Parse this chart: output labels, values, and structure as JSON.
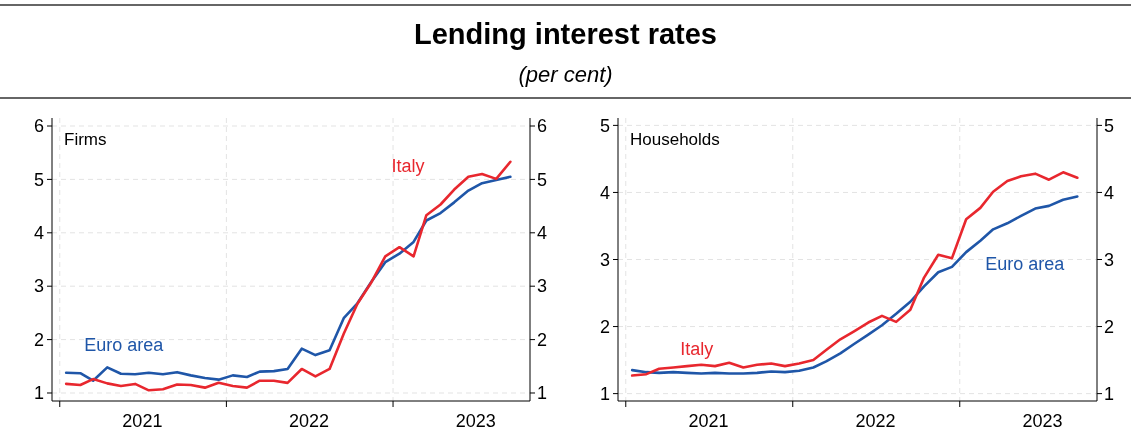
{
  "chart_data": [
    {
      "type": "line",
      "title": "Firms",
      "annotations": [
        "Lending interest rates",
        "(per cent)"
      ],
      "x": [
        "2021-01-15",
        "2021-02-15",
        "2021-03-15",
        "2021-04-15",
        "2021-05-15",
        "2021-06-15",
        "2021-07-15",
        "2021-08-15",
        "2021-09-15",
        "2021-10-15",
        "2021-11-15",
        "2021-12-15",
        "2022-01-15",
        "2022-02-15",
        "2022-03-15",
        "2022-04-15",
        "2022-05-15",
        "2022-06-15",
        "2022-07-15",
        "2022-08-15",
        "2022-09-15",
        "2022-10-15",
        "2022-11-15",
        "2022-12-15",
        "2023-01-15",
        "2023-02-15",
        "2023-03-15",
        "2023-04-15",
        "2023-05-15",
        "2023-06-15",
        "2023-07-15",
        "2023-08-15",
        "2023-09-15"
      ],
      "series": [
        {
          "name": "Euro area",
          "color": "#1f56a8",
          "values": [
            1.38,
            1.37,
            1.23,
            1.48,
            1.36,
            1.35,
            1.38,
            1.35,
            1.39,
            1.33,
            1.28,
            1.25,
            1.33,
            1.3,
            1.4,
            1.41,
            1.45,
            1.83,
            1.71,
            1.8,
            2.4,
            2.68,
            3.09,
            3.45,
            3.61,
            3.83,
            4.23,
            4.37,
            4.57,
            4.79,
            4.93,
            4.99,
            5.05
          ]
        },
        {
          "name": "Italy",
          "color": "#e8272e",
          "values": [
            1.17,
            1.15,
            1.26,
            1.18,
            1.13,
            1.17,
            1.05,
            1.07,
            1.16,
            1.15,
            1.1,
            1.19,
            1.13,
            1.1,
            1.23,
            1.23,
            1.19,
            1.45,
            1.31,
            1.45,
            2.11,
            2.67,
            3.08,
            3.56,
            3.73,
            3.56,
            4.33,
            4.53,
            4.81,
            5.05,
            5.1,
            5.01,
            5.33
          ]
        }
      ],
      "xlim": [
        "2020-12-15",
        "2023-10-28"
      ],
      "xticks": [
        {
          "value": "2021-01-01",
          "label": null
        },
        {
          "value": "2021-07-01",
          "label": "2021"
        },
        {
          "value": "2022-01-01",
          "label": null
        },
        {
          "value": "2022-07-01",
          "label": "2022"
        },
        {
          "value": "2023-01-01",
          "label": null
        },
        {
          "value": "2023-07-01",
          "label": "2023"
        }
      ],
      "ylim": [
        0.85,
        6.15
      ],
      "yticks": [
        1,
        2,
        3,
        4,
        5,
        6
      ],
      "y2lim": [
        0.85,
        6.15
      ],
      "y2ticks": [
        1,
        2,
        3,
        4,
        5,
        6
      ],
      "grid": true,
      "line_style": "solid",
      "marker": "none"
    },
    {
      "type": "line",
      "title": "Households",
      "x": [
        "2021-01-15",
        "2021-02-15",
        "2021-03-15",
        "2021-04-15",
        "2021-05-15",
        "2021-06-15",
        "2021-07-15",
        "2021-08-15",
        "2021-09-15",
        "2021-10-15",
        "2021-11-15",
        "2021-12-15",
        "2022-01-15",
        "2022-02-15",
        "2022-03-15",
        "2022-04-15",
        "2022-05-15",
        "2022-06-15",
        "2022-07-15",
        "2022-08-15",
        "2022-09-15",
        "2022-10-15",
        "2022-11-15",
        "2022-12-15",
        "2023-01-15",
        "2023-02-15",
        "2023-03-15",
        "2023-04-15",
        "2023-05-15",
        "2023-06-15",
        "2023-07-15",
        "2023-08-15",
        "2023-09-15"
      ],
      "series": [
        {
          "name": "Euro area",
          "color": "#1f56a8",
          "values": [
            1.35,
            1.32,
            1.31,
            1.32,
            1.31,
            1.3,
            1.31,
            1.3,
            1.3,
            1.31,
            1.33,
            1.32,
            1.34,
            1.39,
            1.48,
            1.6,
            1.74,
            1.88,
            2.02,
            2.19,
            2.37,
            2.6,
            2.81,
            2.89,
            3.11,
            3.28,
            3.45,
            3.54,
            3.65,
            3.76,
            3.8,
            3.89,
            3.94
          ]
        },
        {
          "name": "Italy",
          "color": "#e8272e",
          "values": [
            1.27,
            1.29,
            1.37,
            1.39,
            1.41,
            1.43,
            1.41,
            1.46,
            1.39,
            1.43,
            1.45,
            1.41,
            1.45,
            1.5,
            1.65,
            1.81,
            1.93,
            2.06,
            2.16,
            2.07,
            2.25,
            2.73,
            3.07,
            3.02,
            3.6,
            3.77,
            4.01,
            4.17,
            4.24,
            4.28,
            4.19,
            4.3,
            4.22
          ]
        }
      ],
      "xlim": [
        "2020-12-15",
        "2023-10-28"
      ],
      "xticks": [
        {
          "value": "2021-01-01",
          "label": null
        },
        {
          "value": "2021-07-01",
          "label": "2021"
        },
        {
          "value": "2022-01-01",
          "label": null
        },
        {
          "value": "2022-07-01",
          "label": "2022"
        },
        {
          "value": "2023-01-01",
          "label": null
        },
        {
          "value": "2023-07-01",
          "label": "2023"
        }
      ],
      "ylim": [
        0.89,
        5.11
      ],
      "yticks": [
        1,
        2,
        3,
        4,
        5
      ],
      "y2lim": [
        0.89,
        5.11
      ],
      "y2ticks": [
        1,
        2,
        3,
        4,
        5
      ],
      "grid": true,
      "line_style": "solid",
      "marker": "none"
    }
  ]
}
